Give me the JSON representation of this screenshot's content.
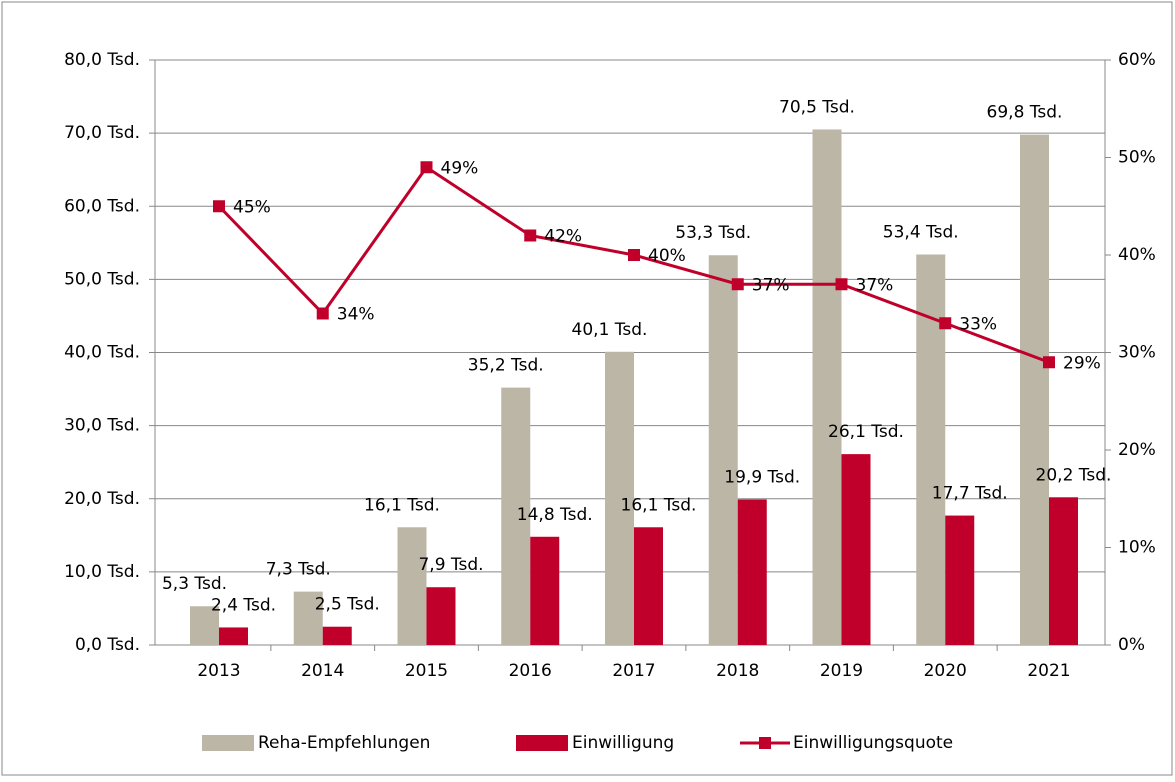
{
  "chart_data": {
    "type": "bar",
    "categories": [
      "2013",
      "2014",
      "2015",
      "2016",
      "2017",
      "2018",
      "2019",
      "2020",
      "2021"
    ],
    "series": [
      {
        "name": "Reha-Empfehlungen",
        "color": "#bcb6a7",
        "values": [
          5.3,
          7.3,
          16.1,
          35.2,
          40.1,
          53.3,
          70.5,
          53.4,
          69.8
        ],
        "value_labels": [
          "5,3 Tsd.",
          "7,3 Tsd.",
          "16,1 Tsd.",
          "35,2 Tsd.",
          "40,1 Tsd.",
          "53,3 Tsd.",
          "70,5 Tsd.",
          "53,4 Tsd.",
          "69,8 Tsd."
        ]
      },
      {
        "name": "Einwilligung",
        "color": "#c0002a",
        "values": [
          2.4,
          2.5,
          7.9,
          14.8,
          16.1,
          19.9,
          26.1,
          17.7,
          20.2
        ],
        "value_labels": [
          "2,4 Tsd.",
          "2,5 Tsd.",
          "7,9 Tsd.",
          "14,8 Tsd.",
          "16,1 Tsd.",
          "19,9 Tsd.",
          "26,1 Tsd.",
          "17,7 Tsd.",
          "20,2 Tsd."
        ]
      },
      {
        "name": "Einwilligungsquote",
        "color": "#c0002a",
        "type": "line",
        "axis": "y2",
        "values": [
          45,
          34,
          49,
          42,
          40,
          37,
          37,
          33,
          29
        ],
        "value_labels": [
          "45%",
          "34%",
          "49%",
          "42%",
          "40%",
          "37%",
          "37%",
          "33%",
          "29%"
        ]
      }
    ],
    "ylim": [
      0,
      80
    ],
    "yticks": [
      {
        "value": 0,
        "label": "0,0 Tsd."
      },
      {
        "value": 10,
        "label": "10,0 Tsd."
      },
      {
        "value": 20,
        "label": "20,0 Tsd."
      },
      {
        "value": 30,
        "label": "30,0 Tsd."
      },
      {
        "value": 40,
        "label": "40,0 Tsd."
      },
      {
        "value": 50,
        "label": "50,0 Tsd."
      },
      {
        "value": 60,
        "label": "60,0 Tsd."
      },
      {
        "value": 70,
        "label": "70,0 Tsd."
      },
      {
        "value": 80,
        "label": "80,0 Tsd."
      }
    ],
    "y2lim": [
      0,
      60
    ],
    "y2ticks": [
      {
        "value": 0,
        "label": "0%"
      },
      {
        "value": 10,
        "label": "10%"
      },
      {
        "value": 20,
        "label": "20%"
      },
      {
        "value": 30,
        "label": "30%"
      },
      {
        "value": 40,
        "label": "40%"
      },
      {
        "value": 50,
        "label": "50%"
      },
      {
        "value": 60,
        "label": "60%"
      }
    ],
    "grid": true,
    "legend": "bottom"
  }
}
